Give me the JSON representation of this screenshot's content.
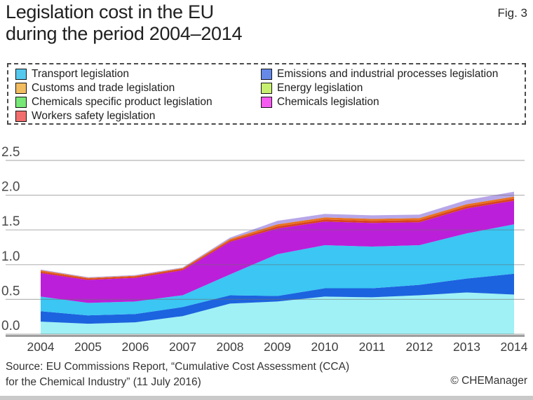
{
  "header": {
    "title_line1": "Legislation cost in the EU",
    "title_line2": "during the period 2004–2014",
    "figure_label": "Fig. 3"
  },
  "legend": {
    "columns": [
      {
        "items": [
          {
            "label": "Transport legislation",
            "color": "#55C8EE"
          },
          {
            "label": "Customs and trade legislation",
            "color": "#F2BC60"
          },
          {
            "label": "Chemicals specific product legislation",
            "color": "#77E877"
          },
          {
            "label": "Workers safety legislation",
            "color": "#F26D6D"
          }
        ]
      },
      {
        "items": [
          {
            "label": "Emissions and industrial processes legislation",
            "color": "#6689E8"
          },
          {
            "label": "Energy legislation",
            "color": "#C8F070"
          },
          {
            "label": "Chemicals legislation",
            "color": "#F55BF0"
          }
        ]
      }
    ]
  },
  "chart_data": {
    "type": "area",
    "stacked": true,
    "title": "Legislation cost in the EU during the period 2004–2014",
    "x": [
      2004,
      2005,
      2006,
      2007,
      2008,
      2009,
      2010,
      2011,
      2012,
      2013,
      2014
    ],
    "ylim": [
      0,
      2.5
    ],
    "yticks": [
      0,
      0.5,
      1.0,
      1.5,
      2.0,
      2.5
    ],
    "ytick_labels": [
      "0.0",
      "0.5",
      "1.0",
      "1.5",
      "2.0",
      "2.5"
    ],
    "grid": "horizontal",
    "legend_position": "top",
    "series": [
      {
        "name": "Energy legislation",
        "color": "#9FF1F5",
        "values": [
          0.18,
          0.15,
          0.17,
          0.26,
          0.44,
          0.47,
          0.54,
          0.53,
          0.56,
          0.6,
          0.57
        ]
      },
      {
        "name": "Emissions and industrial processes legislation",
        "color": "#1C63DF",
        "values": [
          0.15,
          0.12,
          0.12,
          0.13,
          0.12,
          0.08,
          0.12,
          0.13,
          0.15,
          0.2,
          0.3
        ]
      },
      {
        "name": "Transport legislation",
        "color": "#3BC6F3",
        "values": [
          0.21,
          0.18,
          0.18,
          0.17,
          0.3,
          0.6,
          0.62,
          0.6,
          0.57,
          0.65,
          0.71
        ]
      },
      {
        "name": "Chemicals legislation",
        "color": "#BB1FD9",
        "values": [
          0.34,
          0.33,
          0.34,
          0.36,
          0.47,
          0.37,
          0.34,
          0.34,
          0.33,
          0.36,
          0.34
        ]
      },
      {
        "name": "Workers safety legislation",
        "color": "#D8431F",
        "values": [
          0.02,
          0.02,
          0.02,
          0.02,
          0.02,
          0.03,
          0.03,
          0.03,
          0.03,
          0.03,
          0.03
        ]
      },
      {
        "name": "Customs and trade legislation",
        "color": "#E8721F",
        "values": [
          0.02,
          0.01,
          0.01,
          0.01,
          0.02,
          0.03,
          0.03,
          0.03,
          0.03,
          0.03,
          0.03
        ]
      },
      {
        "name": "Chemicals specific product legislation",
        "color": "#B7A6E8",
        "values": [
          0.01,
          0.01,
          0.01,
          0.01,
          0.02,
          0.05,
          0.05,
          0.05,
          0.05,
          0.06,
          0.07
        ]
      }
    ]
  },
  "footer": {
    "source_line1": "Source: EU Commissions Report, “Cumulative Cost Assessment (CCA)",
    "source_line2": "for the Chemical Industry” (11 July 2016)",
    "credit": "© CHEManager"
  }
}
